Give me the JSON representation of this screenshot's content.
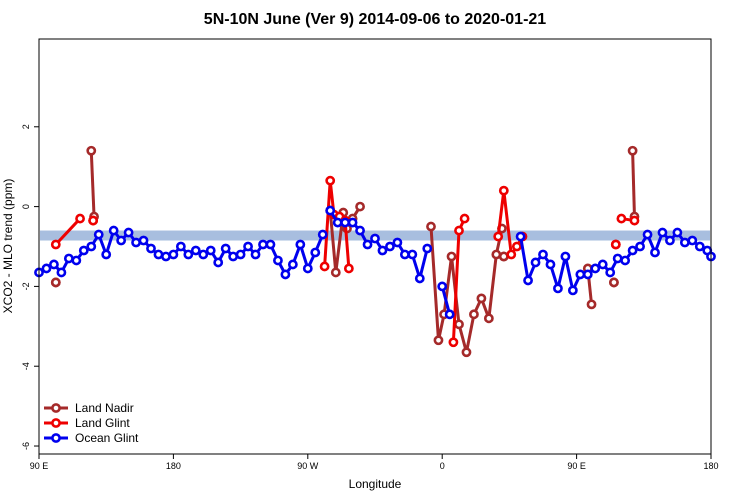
{
  "chart_data": {
    "type": "line",
    "title": "5N-10N June (Ver 9)   2014-09-06 to 2020-01-21",
    "xlabel": "Longitude",
    "ylabel": "XCO2 - MLO trend (ppm)",
    "xlim": [
      -90,
      270
    ],
    "ylim": [
      -6.2,
      4.2
    ],
    "x_ticks": [
      {
        "value": -90,
        "label": "90 E"
      },
      {
        "value": -18,
        "label": "180"
      },
      {
        "value": 54,
        "label": "90 W"
      },
      {
        "value": 126,
        "label": "0"
      },
      {
        "value": 198,
        "label": "90 E"
      },
      {
        "value": 270,
        "label": "180"
      }
    ],
    "y_ticks": [
      {
        "value": 2,
        "label": "2"
      },
      {
        "value": 0,
        "label": "0"
      },
      {
        "value": -2,
        "label": "-2"
      },
      {
        "value": -4,
        "label": "-4"
      },
      {
        "value": -6,
        "label": "-6"
      }
    ],
    "reference_band": {
      "ymin": -0.85,
      "ymax": -0.6,
      "color": "#a8bedf"
    },
    "legend_position": "bottom-left",
    "series": [
      {
        "name": "Land Nadir",
        "color": "#a52a2a",
        "segments": [
          {
            "x": [
              -81,
              -81
            ],
            "y": [
              -1.9,
              -1.9
            ]
          },
          {
            "x": [
              -62,
              -60.5
            ],
            "y": [
              1.4,
              -0.25
            ]
          },
          {
            "x": [
              66,
              69,
              73,
              75,
              78,
              82
            ],
            "y": [
              -0.1,
              -1.65,
              -0.15,
              -0.55,
              -0.3,
              0.0
            ]
          },
          {
            "x": [
              120,
              124,
              127,
              131,
              135,
              139,
              143,
              147,
              151,
              155,
              158
            ],
            "y": [
              -0.5,
              -3.35,
              -2.7,
              -1.25,
              -2.95,
              -3.65,
              -2.7,
              -2.3,
              -2.8,
              -1.2,
              -0.55
            ]
          },
          {
            "x": [
              159,
              159
            ],
            "y": [
              -1.25,
              -1.25
            ]
          },
          {
            "x": [
              204,
              206
            ],
            "y": [
              -1.55,
              -2.45
            ]
          },
          {
            "x": [
              218,
              218
            ],
            "y": [
              -1.9,
              -1.9
            ]
          },
          {
            "x": [
              228,
              229
            ],
            "y": [
              1.4,
              -0.25
            ]
          }
        ]
      },
      {
        "name": "Land Glint",
        "color": "#ee0000",
        "segments": [
          {
            "x": [
              -81,
              -68
            ],
            "y": [
              -0.95,
              -0.3
            ]
          },
          {
            "x": [
              -61,
              -61
            ],
            "y": [
              -0.35,
              -0.35
            ]
          },
          {
            "x": [
              63,
              66,
              68,
              71,
              74,
              76
            ],
            "y": [
              -1.5,
              0.65,
              -0.2,
              -0.25,
              -0.35,
              -1.55
            ]
          },
          {
            "x": [
              132,
              135,
              138
            ],
            "y": [
              -3.4,
              -0.6,
              -0.3
            ]
          },
          {
            "x": [
              156,
              159,
              163,
              166,
              169
            ],
            "y": [
              -0.75,
              0.4,
              -1.2,
              -1.0,
              -0.75
            ]
          },
          {
            "x": [
              219,
              219
            ],
            "y": [
              -0.95,
              -0.95
            ]
          },
          {
            "x": [
              222,
              229
            ],
            "y": [
              -0.3,
              -0.35
            ]
          }
        ]
      },
      {
        "name": "Ocean Glint",
        "color": "#0000ee",
        "segments": [
          {
            "x": [
              -90,
              -86,
              -82,
              -78,
              -74,
              -70,
              -66,
              -62,
              -58,
              -54,
              -50,
              -46,
              -42,
              -38,
              -34,
              -30,
              -26,
              -22,
              -18,
              -14,
              -10,
              -6,
              -2,
              2,
              6,
              10,
              14,
              18,
              22,
              26,
              30,
              34,
              38,
              42,
              46,
              50,
              54,
              58,
              62,
              66
            ],
            "y": [
              -1.65,
              -1.55,
              -1.45,
              -1.65,
              -1.3,
              -1.35,
              -1.1,
              -1.0,
              -0.7,
              -1.2,
              -0.6,
              -0.85,
              -0.65,
              -0.9,
              -0.85,
              -1.05,
              -1.2,
              -1.25,
              -1.2,
              -1.0,
              -1.2,
              -1.1,
              -1.2,
              -1.1,
              -1.4,
              -1.05,
              -1.25,
              -1.2,
              -1.0,
              -1.2,
              -0.95,
              -0.95,
              -1.35,
              -1.7,
              -1.45,
              -0.95,
              -1.55,
              -1.15,
              -0.7,
              null
            ]
          },
          {
            "x": [
              66,
              70,
              74,
              78,
              82,
              86,
              90,
              94,
              98,
              102,
              106,
              110,
              114,
              118
            ],
            "y": [
              -0.1,
              -0.4,
              -0.4,
              -0.4,
              -0.6,
              -0.95,
              -0.8,
              -1.1,
              -1.0,
              -0.9,
              -1.2,
              -1.2,
              -1.8,
              -1.05
            ]
          },
          {
            "x": [
              126,
              130
            ],
            "y": [
              -2.0,
              -2.7
            ]
          },
          {
            "x": [
              168,
              172,
              176,
              180,
              184,
              188,
              192,
              196,
              200,
              204,
              208,
              212,
              216,
              220,
              224,
              228,
              232,
              236,
              240,
              244,
              248,
              252,
              256,
              260,
              264,
              268,
              270
            ],
            "y": [
              -0.75,
              -1.85,
              -1.4,
              -1.2,
              -1.45,
              -2.05,
              -1.25,
              -2.1,
              -1.7,
              -1.7,
              -1.55,
              -1.45,
              -1.65,
              -1.3,
              -1.35,
              -1.1,
              -1.0,
              -0.7,
              -1.15,
              -0.65,
              -0.85,
              -0.65,
              -0.9,
              -0.85,
              -1.0,
              -1.1,
              -1.25
            ]
          }
        ]
      }
    ]
  }
}
